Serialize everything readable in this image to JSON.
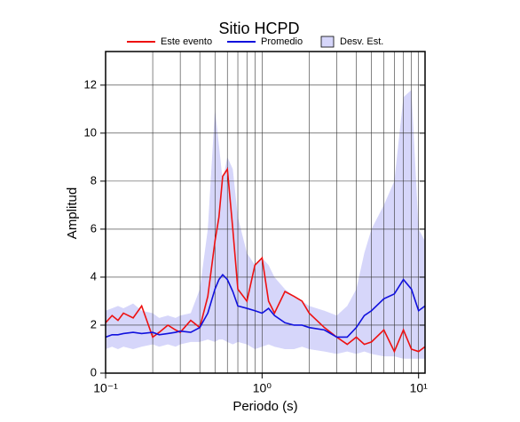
{
  "chart_data": {
    "type": "line",
    "title": "Sitio HCPD",
    "xlabel": "Periodo (s)",
    "ylabel": "Amplitud",
    "xscale": "log",
    "xlim": [
      0.1,
      11
    ],
    "ylim": [
      0,
      13.4
    ],
    "xticks": [
      {
        "value": 0.1,
        "label": "10⁻¹"
      },
      {
        "value": 1,
        "label": "10⁰"
      },
      {
        "value": 10,
        "label": "10¹"
      }
    ],
    "xgrid": [
      0.2,
      0.3,
      0.4,
      0.5,
      0.6,
      0.7,
      0.8,
      0.9,
      2,
      3,
      4,
      5,
      6,
      7,
      8,
      9
    ],
    "yticks": [
      0,
      2,
      4,
      6,
      8,
      10,
      12
    ],
    "grid": true,
    "x": [
      0.1,
      0.11,
      0.12,
      0.13,
      0.15,
      0.17,
      0.2,
      0.22,
      0.25,
      0.28,
      0.3,
      0.35,
      0.4,
      0.45,
      0.5,
      0.53,
      0.56,
      0.6,
      0.65,
      0.7,
      0.8,
      0.9,
      1.0,
      1.1,
      1.2,
      1.4,
      1.6,
      1.8,
      2,
      2.5,
      3,
      3.5,
      4,
      4.5,
      5,
      6,
      7,
      8,
      9,
      10,
      11
    ],
    "band": {
      "name": "Desv. Est.",
      "color": "#d6d6fa",
      "upper": [
        2.6,
        2.7,
        2.8,
        2.7,
        2.9,
        2.6,
        2.5,
        2.3,
        2.4,
        2.3,
        2.4,
        2.5,
        3.5,
        6,
        11,
        9.5,
        8,
        9,
        8.5,
        6.5,
        5,
        4.5,
        4.8,
        4.5,
        4,
        3.5,
        3.2,
        3,
        2.8,
        2.6,
        2.4,
        2.8,
        3.5,
        5,
        6,
        7,
        8,
        11.5,
        11.8,
        6,
        5.5
      ],
      "lower": [
        1.0,
        1.1,
        1.0,
        1.1,
        1.0,
        1.1,
        1.2,
        1.1,
        1.2,
        1.1,
        1.2,
        1.3,
        1.3,
        1.4,
        1.3,
        1.4,
        1.4,
        1.3,
        1.2,
        1.3,
        1.2,
        1.0,
        1.1,
        1.2,
        1.1,
        1.0,
        1.0,
        1.1,
        1.0,
        0.9,
        0.8,
        0.9,
        0.8,
        0.9,
        0.8,
        0.7,
        0.7,
        0.6,
        0.6,
        0.6,
        0.6
      ]
    },
    "series": [
      {
        "name": "Este evento",
        "color": "#ee1111",
        "values": [
          2.1,
          2.4,
          2.2,
          2.5,
          2.3,
          2.8,
          1.5,
          1.7,
          2.0,
          1.8,
          1.7,
          2.2,
          1.9,
          3.2,
          5.5,
          6.5,
          8.2,
          8.5,
          6.0,
          3.5,
          3.0,
          4.5,
          4.8,
          3.0,
          2.5,
          3.4,
          3.2,
          3.0,
          2.5,
          1.9,
          1.5,
          1.2,
          1.5,
          1.2,
          1.3,
          1.8,
          0.9,
          1.8,
          1.0,
          0.9,
          1.1
        ]
      },
      {
        "name": "Promedio",
        "color": "#1111dd",
        "values": [
          1.5,
          1.6,
          1.6,
          1.65,
          1.7,
          1.65,
          1.7,
          1.6,
          1.65,
          1.7,
          1.75,
          1.7,
          1.9,
          2.5,
          3.5,
          3.9,
          4.1,
          3.9,
          3.4,
          2.8,
          2.7,
          2.6,
          2.5,
          2.7,
          2.4,
          2.1,
          2.0,
          2.0,
          1.9,
          1.8,
          1.5,
          1.5,
          1.9,
          2.4,
          2.6,
          3.1,
          3.3,
          3.9,
          3.5,
          2.6,
          2.8
        ]
      }
    ]
  }
}
